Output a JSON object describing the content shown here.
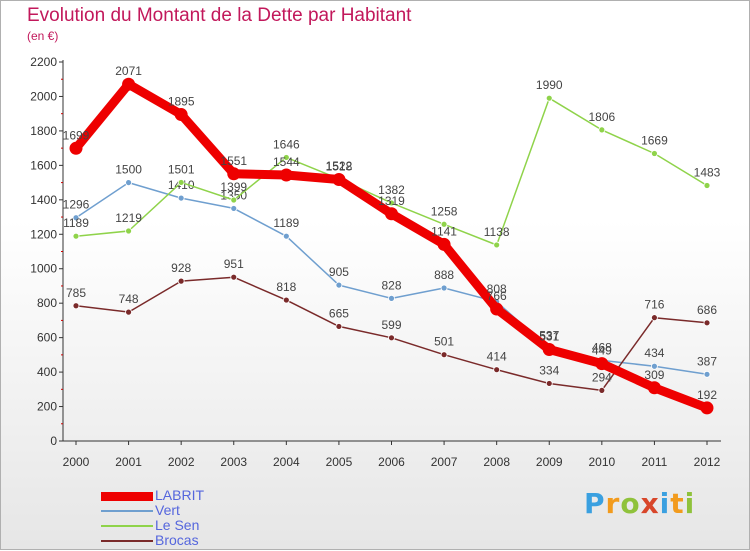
{
  "header": {
    "title": "Evolution du Montant de la Dette par Habitant",
    "unit": "(en €)"
  },
  "logo": {
    "letters": [
      "P",
      "r",
      "o",
      "x",
      "i",
      "t",
      "i"
    ],
    "colors": [
      "#3aa0e0",
      "#f29b1d",
      "#8fc23b",
      "#d8462a",
      "#3aa0e0",
      "#f29b1d",
      "#8fc23b"
    ]
  },
  "chart_data": {
    "type": "line",
    "title": "Evolution du Montant de la Dette par Habitant",
    "ylabel": "(en €)",
    "xlabel": "",
    "x": [
      "2000",
      "2001",
      "2002",
      "2003",
      "2004",
      "2005",
      "2006",
      "2007",
      "2008",
      "2009",
      "2010",
      "2011",
      "2012"
    ],
    "ylim": [
      0,
      2200
    ],
    "yticks": [
      0,
      200,
      400,
      600,
      800,
      1000,
      1200,
      1400,
      1600,
      1800,
      2000,
      2200
    ],
    "grid": false,
    "legend": "bottom-left",
    "series": [
      {
        "name": "LABRIT",
        "color": "#ee0000",
        "emphasis": true,
        "values": [
          1699,
          2071,
          1895,
          1551,
          1544,
          1518,
          1319,
          1141,
          766,
          531,
          449,
          309,
          192
        ]
      },
      {
        "name": "Vert",
        "color": "#6f9fcf",
        "emphasis": false,
        "values": [
          1296,
          1500,
          1410,
          1350,
          1189,
          905,
          828,
          888,
          808,
          537,
          468,
          434,
          387
        ]
      },
      {
        "name": "Le Sen",
        "color": "#8fd34a",
        "emphasis": false,
        "values": [
          1189,
          1219,
          1501,
          1399,
          1646,
          1522,
          1382,
          1258,
          1138,
          1990,
          1806,
          1669,
          1483
        ]
      },
      {
        "name": "Brocas",
        "color": "#7a2a2a",
        "emphasis": false,
        "values": [
          785,
          748,
          928,
          951,
          818,
          665,
          599,
          501,
          414,
          334,
          294,
          716,
          686
        ]
      }
    ]
  }
}
